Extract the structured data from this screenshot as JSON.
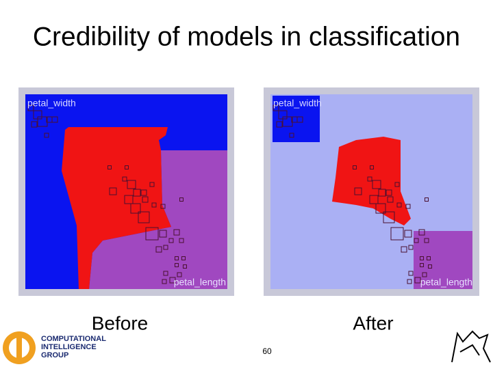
{
  "title": "Credibility of models in classification",
  "panels": [
    {
      "caption": "Before",
      "y_label": "petal_width",
      "x_label": "petal_length"
    },
    {
      "caption": "After",
      "y_label": "petal_width",
      "x_label": "petal_length"
    }
  ],
  "footer": {
    "logo_lines": [
      "COMPUTATIONAL",
      "INTELLIGENCE",
      "GROUP"
    ],
    "page_number": "60"
  }
}
